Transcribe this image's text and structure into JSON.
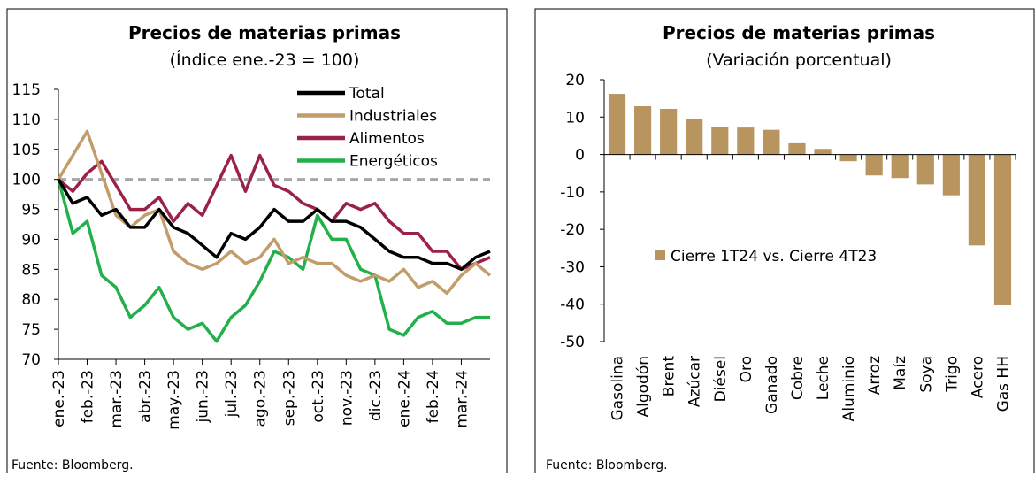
{
  "chart_data": [
    {
      "type": "line",
      "title": "Precios de materias primas",
      "subtitle": "(Índice ene.-23 = 100)",
      "source": "Fuente: Bloomberg.",
      "categories": [
        "ene.-23",
        null,
        "feb.-23",
        null,
        "mar.-23",
        null,
        "abr.-23",
        null,
        "may.-23",
        null,
        "jun.-23",
        null,
        "jul.-23",
        null,
        "ago.-23",
        null,
        "sep.-23",
        null,
        "oct.-23",
        null,
        "nov.-23",
        null,
        "dic.-23",
        null,
        "ene.-24",
        null,
        "feb.-24",
        null,
        "mar.-24",
        null,
        null
      ],
      "series": [
        {
          "name": "Total",
          "color": "#000000",
          "values": [
            100,
            96,
            97,
            94,
            95,
            92,
            92,
            95,
            92,
            91,
            89,
            87,
            91,
            90,
            92,
            95,
            93,
            93,
            95,
            93,
            93,
            92,
            90,
            88,
            87,
            87,
            86,
            86,
            85,
            87,
            88
          ]
        },
        {
          "name": "Industriales",
          "color": "#c29d6c",
          "values": [
            100,
            104,
            108,
            101,
            94,
            92,
            94,
            95,
            88,
            86,
            85,
            86,
            88,
            86,
            87,
            90,
            86,
            87,
            86,
            86,
            84,
            83,
            84,
            83,
            85,
            82,
            83,
            81,
            84,
            86,
            84
          ]
        },
        {
          "name": "Alimentos",
          "color": "#9b2247",
          "values": [
            100,
            98,
            101,
            103,
            99,
            95,
            95,
            97,
            93,
            96,
            94,
            99,
            104,
            98,
            104,
            99,
            98,
            96,
            95,
            93,
            96,
            95,
            96,
            93,
            91,
            91,
            88,
            88,
            85,
            86,
            87
          ]
        },
        {
          "name": "Energéticos",
          "color": "#22b04b",
          "values": [
            100,
            91,
            93,
            84,
            82,
            77,
            79,
            82,
            77,
            75,
            76,
            73,
            77,
            79,
            83,
            88,
            87,
            85,
            94,
            90,
            90,
            85,
            84,
            75,
            74,
            77,
            78,
            76,
            76,
            77,
            77
          ]
        }
      ],
      "hline": 100,
      "hline_color": "#a6a6a6",
      "ylim": [
        70,
        115
      ],
      "yticks": [
        70,
        75,
        80,
        85,
        90,
        95,
        100,
        105,
        110,
        115
      ]
    },
    {
      "type": "bar",
      "title": "Precios de materias primas",
      "subtitle": "(Variación porcentual)",
      "source": "Fuente: Bloomberg.",
      "categories": [
        "Gasolina",
        "Algodón",
        "Brent",
        "Azúcar",
        "Diésel",
        "Oro",
        "Ganado",
        "Cobre",
        "Leche",
        "Aluminio",
        "Arroz",
        "Maíz",
        "Soya",
        "Trigo",
        "Acero",
        "Gas HH"
      ],
      "series": [
        {
          "name": "Cierre 1T24 vs. Cierre 4T23",
          "color": "#b8945f",
          "values": [
            16.2,
            12.9,
            12.2,
            9.5,
            7.3,
            7.2,
            6.6,
            3.0,
            1.5,
            -1.8,
            -5.6,
            -6.3,
            -8.0,
            -10.9,
            -24.3,
            -40.3
          ]
        }
      ],
      "ylim": [
        -50,
        20
      ],
      "yticks": [
        -50,
        -40,
        -30,
        -20,
        -10,
        0,
        10,
        20
      ]
    }
  ]
}
